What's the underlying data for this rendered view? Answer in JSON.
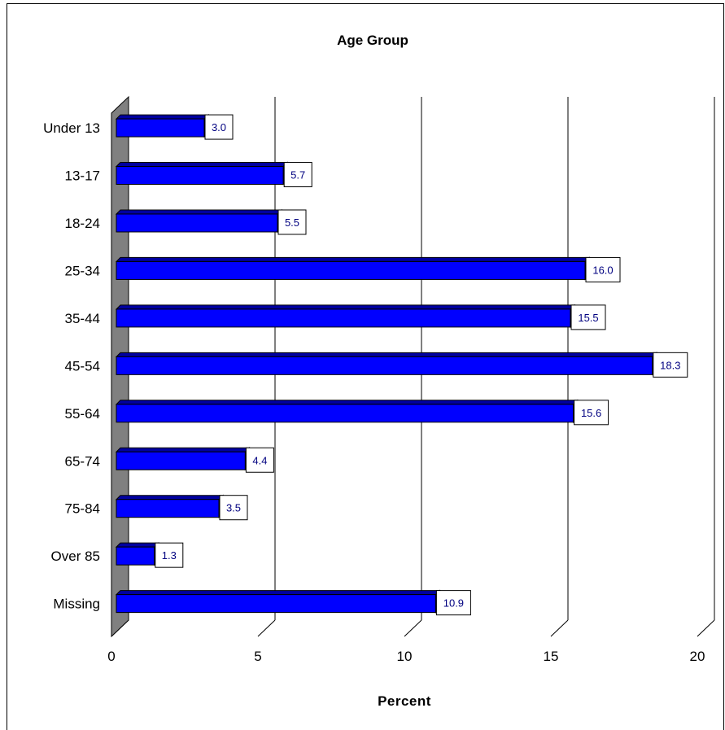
{
  "chart_data": {
    "type": "bar",
    "orientation": "horizontal",
    "title": "Age Group",
    "xlabel": "Percent",
    "ylabel": "",
    "categories": [
      "Under 13",
      "13-17",
      "18-24",
      "25-34",
      "35-44",
      "45-54",
      "55-64",
      "65-74",
      "75-84",
      "Over 85",
      "Missing"
    ],
    "values": [
      3.0,
      5.7,
      5.5,
      16.0,
      15.5,
      18.3,
      15.6,
      4.4,
      3.5,
      1.3,
      10.9
    ],
    "value_labels": [
      "3.0",
      "5.7",
      "5.5",
      "16.0",
      "15.5",
      "18.3",
      "15.6",
      "4.4",
      "3.5",
      "1.3",
      "10.9"
    ],
    "xlim": [
      0,
      20
    ],
    "xticks": [
      "0",
      "5",
      "10",
      "15",
      "20"
    ],
    "grid": true,
    "legend": "none",
    "bar_color": "#0000ff",
    "label_color": "#000080",
    "wall_color": "#808080"
  }
}
